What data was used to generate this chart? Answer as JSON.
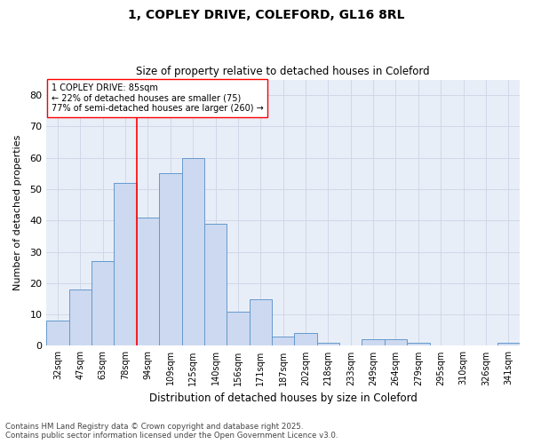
{
  "title": "1, COPLEY DRIVE, COLEFORD, GL16 8RL",
  "subtitle": "Size of property relative to detached houses in Coleford",
  "xlabel": "Distribution of detached houses by size in Coleford",
  "ylabel": "Number of detached properties",
  "footer_line1": "Contains HM Land Registry data © Crown copyright and database right 2025.",
  "footer_line2": "Contains public sector information licensed under the Open Government Licence v3.0.",
  "categories": [
    "32sqm",
    "47sqm",
    "63sqm",
    "78sqm",
    "94sqm",
    "109sqm",
    "125sqm",
    "140sqm",
    "156sqm",
    "171sqm",
    "187sqm",
    "202sqm",
    "218sqm",
    "233sqm",
    "249sqm",
    "264sqm",
    "279sqm",
    "295sqm",
    "310sqm",
    "326sqm",
    "341sqm"
  ],
  "values": [
    8,
    18,
    27,
    52,
    41,
    55,
    60,
    39,
    11,
    15,
    3,
    4,
    1,
    0,
    2,
    2,
    1,
    0,
    0,
    0,
    1
  ],
  "bar_color": "#ccd9f0",
  "bar_edge_color": "#6699cc",
  "grid_color": "#d0d8e8",
  "background_color": "#e8eef8",
  "annotation_line1": "1 COPLEY DRIVE: 85sqm",
  "annotation_line2": "← 22% of detached houses are smaller (75)",
  "annotation_line3": "77% of semi-detached houses are larger (260) →",
  "vline_x": 3.5,
  "ylim": [
    0,
    85
  ],
  "yticks": [
    0,
    10,
    20,
    30,
    40,
    50,
    60,
    70,
    80
  ]
}
